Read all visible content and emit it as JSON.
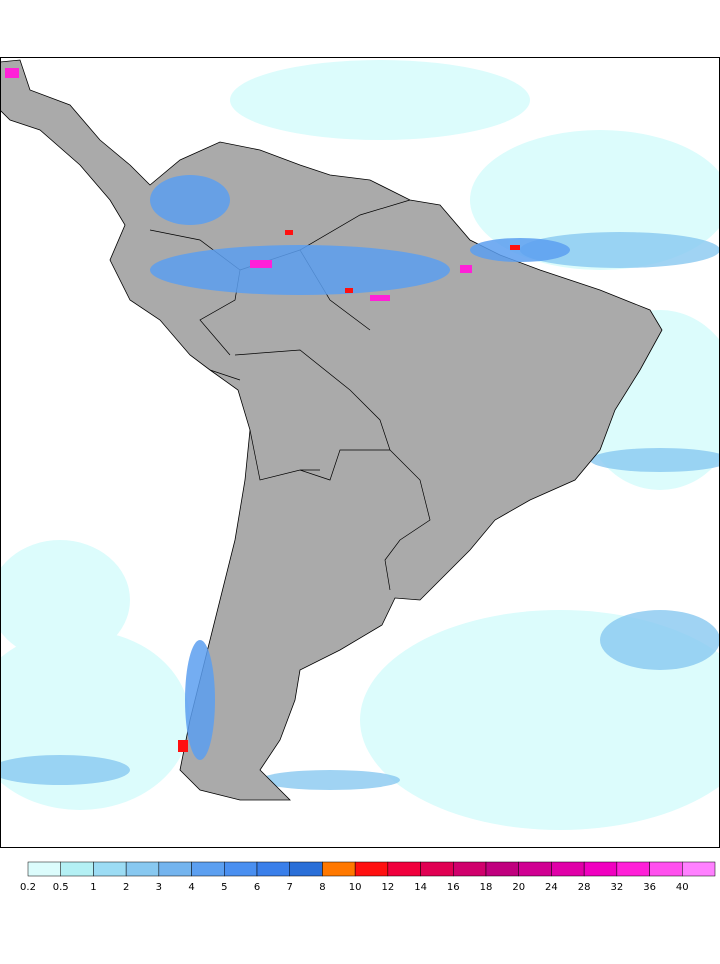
{
  "colorbar": {
    "levels": [
      0.2,
      0.5,
      1,
      2,
      3,
      4,
      5,
      6,
      7,
      8,
      10,
      12,
      14,
      16,
      18,
      20,
      24,
      28,
      32,
      36,
      40
    ],
    "colors": [
      "#dcfcfc",
      "#b4f0f4",
      "#9cdcf4",
      "#88c8f0",
      "#74b4ee",
      "#5c9ff0",
      "#4a8ff0",
      "#3a7fea",
      "#2a6fd8",
      "#ff7800",
      "#ff1010",
      "#f0003c",
      "#e00052",
      "#d0006c",
      "#c0007e",
      "#d00092",
      "#e000a8",
      "#f000c0",
      "#ff20d8",
      "#ff50ee",
      "#ff80ff"
    ]
  }
}
